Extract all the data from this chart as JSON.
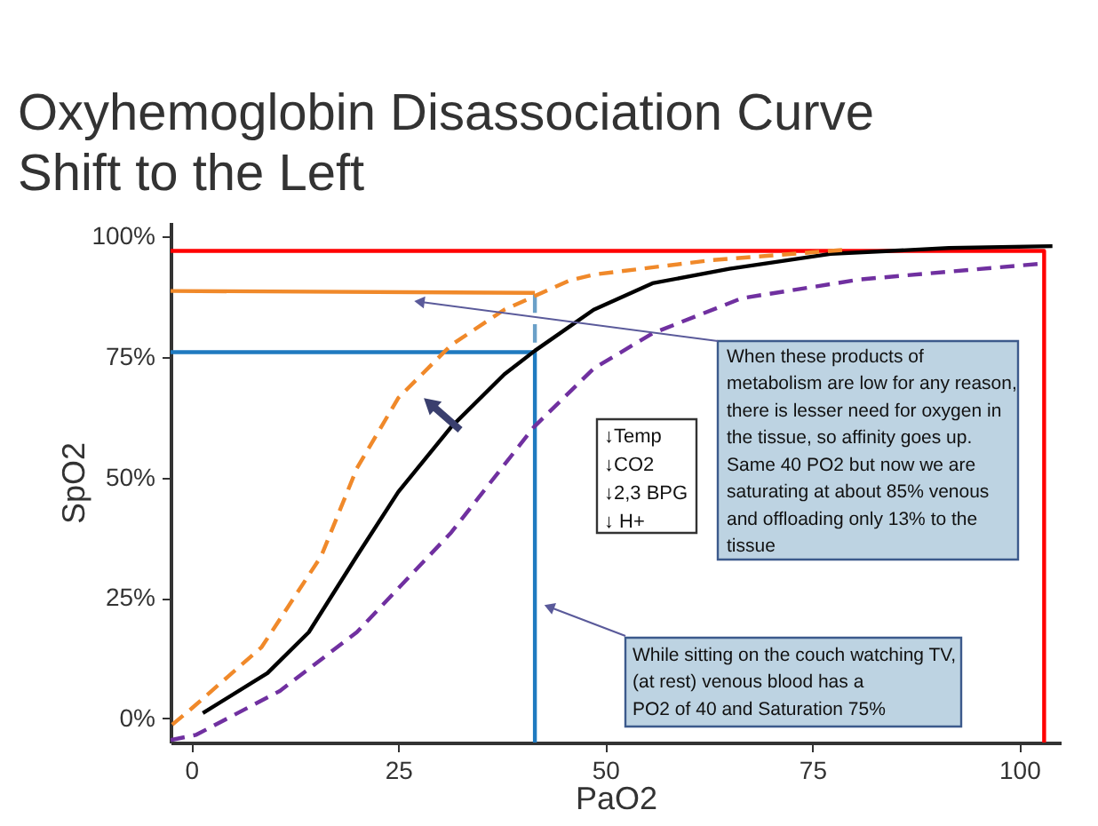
{
  "chart_data": {
    "type": "line",
    "title": "Oxyhemoglobin Disassociation Curve\nShift to the Left",
    "xlabel": "PaO2",
    "ylabel": "SpO2",
    "xlim": [
      -2.5,
      105
    ],
    "ylim": [
      -5,
      103
    ],
    "xticks": [
      0,
      25,
      50,
      75,
      100
    ],
    "yticks": [
      {
        "value": 0,
        "label": "0%"
      },
      {
        "value": 25,
        "label": "25%"
      },
      {
        "value": 50,
        "label": "50%"
      },
      {
        "value": 75,
        "label": "75%"
      },
      {
        "value": 100,
        "label": "100%"
      }
    ],
    "grid": false,
    "legend": false,
    "series": [
      {
        "color": "#ff0000",
        "line_style": "solid",
        "x": [
          -2.5,
          103,
          103
        ],
        "values": [
          97,
          97,
          -5
        ]
      },
      {
        "color": "#f0892a",
        "line_style": "solid",
        "x": [
          -2.5,
          41.5
        ],
        "values": [
          88.7,
          88.3
        ]
      },
      {
        "color": "#1f7ac0",
        "line_style": "solid",
        "x": [
          -2.5,
          41.5,
          41.5
        ],
        "values": [
          76,
          76,
          -5
        ]
      },
      {
        "color": "#6aa0c8",
        "line_style": "dashed",
        "x": [
          41.5,
          41.5
        ],
        "values": [
          78,
          88
        ]
      },
      {
        "color": "#000000",
        "line_style": "solid",
        "x": [
          1.4,
          9.2,
          14.2,
          20,
          25,
          31.4,
          37.8,
          41.5,
          48.6,
          55.7,
          65,
          77.2,
          91.5,
          104
        ],
        "values": [
          1.1,
          9.4,
          17.9,
          33.7,
          47,
          60.5,
          71.4,
          76.3,
          84.8,
          90.3,
          93.3,
          96.4,
          97.6,
          98
        ]
      },
      {
        "color": "#f0892a",
        "line_style": "dashed",
        "x": [
          -2.3,
          0,
          8.5,
          15.7,
          20,
          25,
          31.4,
          37.8,
          45.7,
          48.6,
          62.9,
          78.6
        ],
        "values": [
          -1.3,
          2,
          14.8,
          33.7,
          51.9,
          66.5,
          77.5,
          84.8,
          90.9,
          92.1,
          95.1,
          97.2
        ]
      },
      {
        "color": "#7030a0",
        "line_style": "dashed",
        "x": [
          -2.5,
          0.6,
          10.7,
          20,
          31.4,
          41.4,
          48.6,
          55.7,
          66.5,
          80.8,
          102.2
        ],
        "values": [
          -4.5,
          -3.4,
          5.7,
          17.9,
          38.6,
          60.5,
          72.6,
          79.9,
          87.2,
          91.1,
          94.3
        ]
      }
    ],
    "annotations": [
      "↓Temp\n↓CO2\n↓2,3 BPG\n↓ H+",
      "When these products of\nmetabolism are low for any reason,\nthere is lesser need for oxygen in\nthe tissue, so affinity goes up.\nSame 40 PO2 but now we are\nsaturating at about 85% venous\nand offloading only 13% to the\ntissue",
      "While sitting on the couch watching TV,\n(at rest) venous blood has a\nPO2 of 40 and Saturation 75%"
    ]
  }
}
